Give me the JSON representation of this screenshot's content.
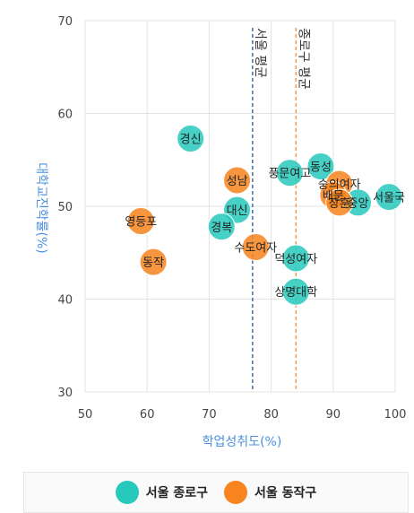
{
  "chart_data": {
    "type": "scatter",
    "xlabel": "학업성취도(%)",
    "ylabel": "대학교진학률(%)",
    "xlim": [
      50,
      100
    ],
    "ylim": [
      30,
      70
    ],
    "xticks": [
      50,
      60,
      70,
      80,
      90,
      100
    ],
    "yticks": [
      30,
      40,
      50,
      60,
      70
    ],
    "grid": true,
    "legend_position": "bottom",
    "reference_lines": [
      {
        "label": "서울 평균",
        "x": 77,
        "color": "#3f6ea6"
      },
      {
        "label": "종로구 평균",
        "x": 84,
        "color": "#f0a14f"
      }
    ],
    "series": [
      {
        "name": "서울 종로구",
        "color": "#27c9bc",
        "points": [
          {
            "label": "경신",
            "x": 67,
            "y": 57.3
          },
          {
            "label": "동성",
            "x": 88,
            "y": 54.3
          },
          {
            "label": "풍문여고",
            "x": 83,
            "y": 53.6
          },
          {
            "label": "대신",
            "x": 74.5,
            "y": 49.6
          },
          {
            "label": "경복",
            "x": 72,
            "y": 47.8
          },
          {
            "label": "덕성여자",
            "x": 84,
            "y": 44.4
          },
          {
            "label": "상명대학",
            "x": 84,
            "y": 40.8
          },
          {
            "label": "중앙",
            "x": 94,
            "y": 50.4
          },
          {
            "label": "서울국",
            "x": 99,
            "y": 51
          }
        ]
      },
      {
        "name": "서울 동작구",
        "color": "#f7841f",
        "points": [
          {
            "label": "성남",
            "x": 74.5,
            "y": 52.8
          },
          {
            "label": "영등포",
            "x": 59,
            "y": 48.4
          },
          {
            "label": "동작",
            "x": 61,
            "y": 44
          },
          {
            "label": "수도여자",
            "x": 77.5,
            "y": 45.6
          },
          {
            "label": "숭의여자",
            "x": 91,
            "y": 52.4
          },
          {
            "label": "배문",
            "x": 90,
            "y": 51.2
          },
          {
            "label": "장훈",
            "x": 91,
            "y": 50.4
          }
        ]
      }
    ]
  },
  "legend": {
    "items": [
      {
        "name": "서울 종로구",
        "color": "#27c9bc"
      },
      {
        "name": "서울 동작구",
        "color": "#f7841f"
      }
    ]
  }
}
